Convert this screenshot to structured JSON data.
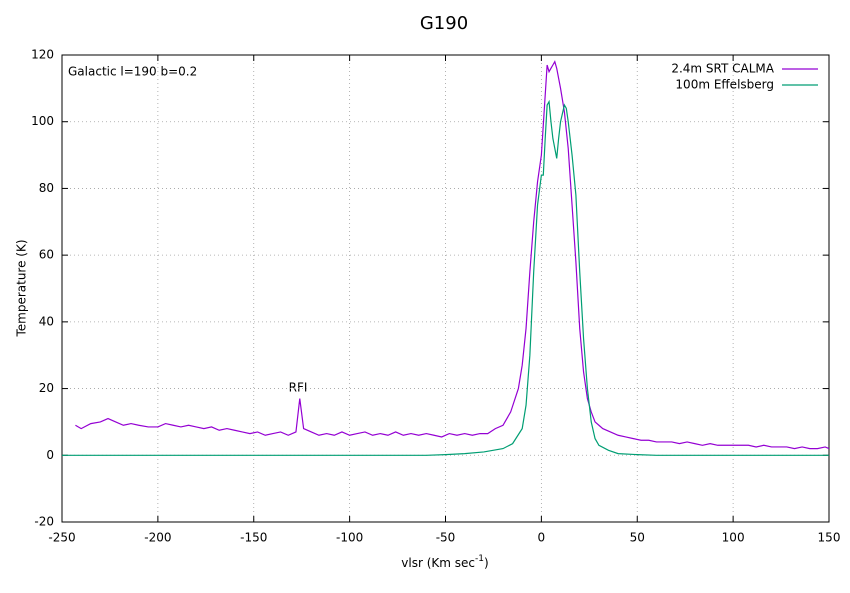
{
  "chart_data": {
    "type": "line",
    "title": "G190",
    "x_label": {
      "text": "vlsr (Km sec",
      "superscript": "-1",
      "suffix": ")"
    },
    "y_label": "Temperature (K)",
    "annotations": [
      "Galactic l=190 b=0.2",
      "RFI"
    ],
    "xlim": [
      -250,
      150
    ],
    "xticks": [
      -250,
      -200,
      -150,
      -100,
      -50,
      0,
      50,
      100,
      150
    ],
    "ylim": [
      -20,
      120
    ],
    "yticks": [
      -20,
      0,
      20,
      40,
      60,
      80,
      100,
      120
    ],
    "grid": true,
    "legend": "top-right",
    "series": [
      {
        "name": "2.4m SRT CALMA",
        "color": "#9400d3",
        "x": [
          -243,
          -240,
          -235,
          -230,
          -226,
          -222,
          -218,
          -214,
          -210,
          -205,
          -200,
          -196,
          -192,
          -188,
          -184,
          -180,
          -176,
          -172,
          -168,
          -164,
          -160,
          -156,
          -152,
          -148,
          -144,
          -140,
          -136,
          -132,
          -128,
          -126,
          -124,
          -120,
          -116,
          -112,
          -108,
          -104,
          -100,
          -96,
          -92,
          -88,
          -84,
          -80,
          -76,
          -72,
          -68,
          -64,
          -60,
          -56,
          -52,
          -48,
          -44,
          -40,
          -36,
          -32,
          -28,
          -24,
          -20,
          -16,
          -12,
          -10,
          -8,
          -6,
          -4,
          -2,
          0,
          2,
          3,
          4,
          5,
          6,
          7,
          8,
          10,
          12,
          14,
          16,
          18,
          20,
          22,
          24,
          26,
          28,
          30,
          32,
          36,
          40,
          44,
          48,
          52,
          56,
          60,
          64,
          68,
          72,
          76,
          80,
          84,
          88,
          92,
          96,
          100,
          104,
          108,
          112,
          116,
          120,
          124,
          128,
          132,
          136,
          140,
          144,
          148,
          150
        ],
        "values": [
          9,
          8,
          9.5,
          10,
          11,
          10,
          9,
          9.5,
          9,
          8.5,
          8.5,
          9.5,
          9,
          8.5,
          9,
          8.5,
          8,
          8.5,
          7.5,
          8,
          7.5,
          7,
          6.5,
          7,
          6,
          6.5,
          7,
          6,
          7,
          17,
          8,
          7,
          6,
          6.5,
          6,
          7,
          6,
          6.5,
          7,
          6,
          6.5,
          6,
          7,
          6,
          6.5,
          6,
          6.5,
          6,
          5.5,
          6.5,
          6,
          6.5,
          6,
          6.5,
          6.5,
          8,
          9,
          13,
          20,
          27,
          38,
          55,
          70,
          82,
          90,
          108,
          117,
          115,
          116,
          117,
          118,
          116,
          110,
          103,
          92,
          75,
          58,
          38,
          25,
          17,
          13,
          10,
          9,
          8,
          7,
          6,
          5.5,
          5,
          4.5,
          4.5,
          4,
          4,
          4,
          3.5,
          4,
          3.5,
          3,
          3.5,
          3,
          3,
          3,
          3,
          3,
          2.5,
          3,
          2.5,
          2.5,
          2.5,
          2,
          2.5,
          2,
          2,
          2.5,
          2
        ]
      },
      {
        "name": "100m Effelsberg",
        "color": "#009e73",
        "x": [
          -250,
          -200,
          -150,
          -100,
          -60,
          -50,
          -40,
          -30,
          -20,
          -15,
          -10,
          -8,
          -6,
          -4,
          -2,
          0,
          1,
          2,
          3,
          4,
          5,
          6,
          7,
          8,
          9,
          10,
          12,
          13,
          14,
          16,
          18,
          20,
          22,
          24,
          26,
          28,
          30,
          35,
          40,
          50,
          60,
          100,
          150
        ],
        "values": [
          0,
          0,
          0,
          0,
          0,
          0.2,
          0.5,
          1,
          2,
          3.5,
          8,
          15,
          30,
          55,
          75,
          84,
          84,
          95,
          105,
          106,
          100,
          95,
          92,
          89,
          95,
          100,
          105,
          104,
          100,
          90,
          78,
          55,
          35,
          20,
          10,
          5,
          3,
          1.5,
          0.5,
          0.2,
          0,
          0,
          0
        ]
      }
    ]
  }
}
